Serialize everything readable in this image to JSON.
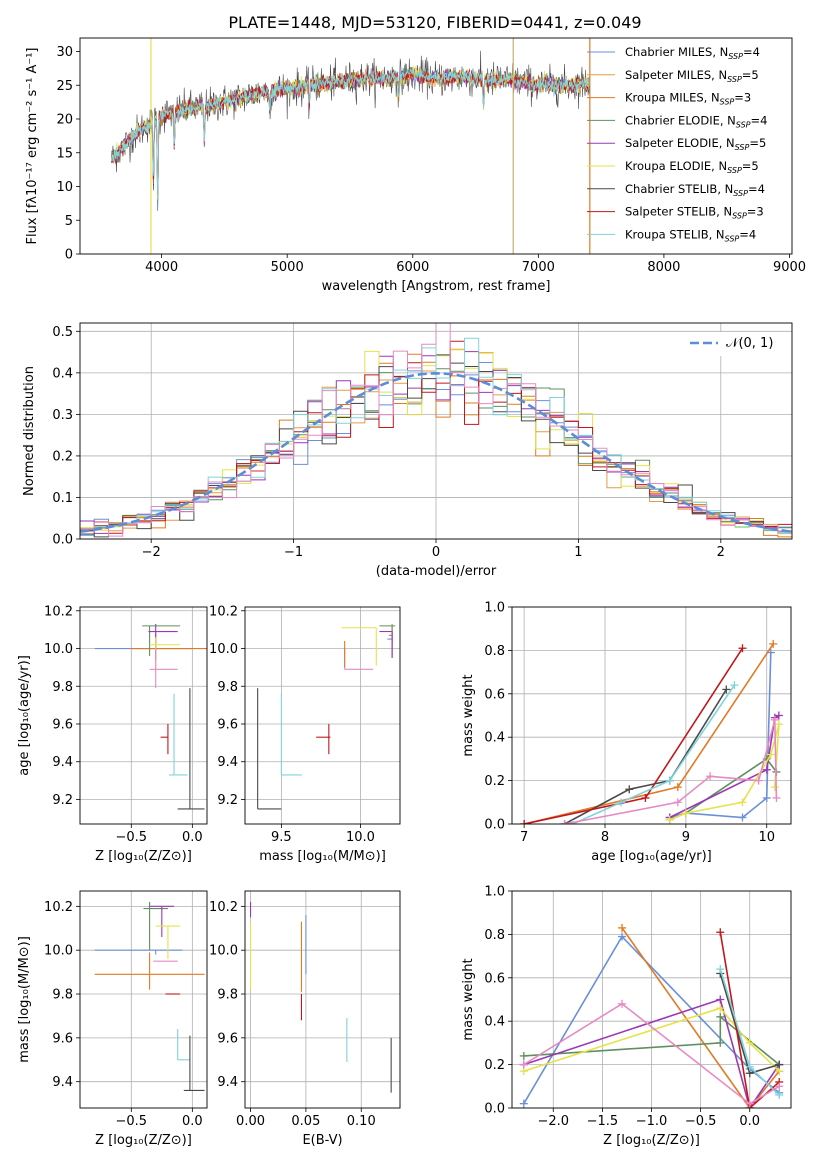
{
  "figure": {
    "title": "PLATE=1448, MJD=53120, FIBERID=0441, z=0.049",
    "colors": [
      "#6b8fd8",
      "#e69a48",
      "#e07a25",
      "#5f8f5f",
      "#9b39b5",
      "#e5e24a",
      "#4a4a4a",
      "#c0181c",
      "#7fd3dc",
      "#e78ac3",
      "#dddd55"
    ]
  },
  "chart_data": [
    {
      "id": "spectrum",
      "type": "line",
      "title": "PLATE=1448, MJD=53120, FIBERID=0441, z=0.049",
      "xlabel": "wavelength [Angstrom, rest frame]",
      "ylabel": "Flux [fλ10⁻¹⁷ erg cm⁻² s⁻¹ A⁻¹]",
      "xlim": [
        3350,
        9020
      ],
      "ylim": [
        0,
        32
      ],
      "xticks": [
        4000,
        5000,
        6000,
        7000,
        8000,
        9000
      ],
      "yticks": [
        0,
        5,
        10,
        15,
        20,
        25,
        30
      ],
      "grid": false,
      "legend_position": "top-right",
      "legend": [
        {
          "label": "Chabrier MILES, N",
          "sub": "SSP",
          "suffix": "=4",
          "color": "#6b8fd8"
        },
        {
          "label": "Salpeter MILES, N",
          "sub": "SSP",
          "suffix": "=5",
          "color": "#e69a48"
        },
        {
          "label": "Kroupa MILES, N",
          "sub": "SSP",
          "suffix": "=3",
          "color": "#e07a25"
        },
        {
          "label": "Chabrier ELODIE, N",
          "sub": "SSP",
          "suffix": "=4",
          "color": "#5f8f5f"
        },
        {
          "label": "Salpeter ELODIE, N",
          "sub": "SSP",
          "suffix": "=5",
          "color": "#9b39b5"
        },
        {
          "label": "Kroupa ELODIE, N",
          "sub": "SSP",
          "suffix": "=5",
          "color": "#e5e24a"
        },
        {
          "label": "Chabrier STELIB, N",
          "sub": "SSP",
          "suffix": "=4",
          "color": "#4a4a4a"
        },
        {
          "label": "Salpeter STELIB, N",
          "sub": "SSP",
          "suffix": "=3",
          "color": "#c0181c"
        },
        {
          "label": "Kroupa STELIB, N",
          "sub": "SSP",
          "suffix": "=4",
          "color": "#7fd3dc"
        }
      ],
      "continuum": [
        [
          3600,
          14
        ],
        [
          3800,
          18
        ],
        [
          4000,
          20.5
        ],
        [
          4200,
          21.5
        ],
        [
          4400,
          22
        ],
        [
          4600,
          23
        ],
        [
          4800,
          24
        ],
        [
          5000,
          24.5
        ],
        [
          5200,
          25
        ],
        [
          5400,
          25.5
        ],
        [
          5600,
          26
        ],
        [
          5800,
          26
        ],
        [
          6000,
          26.5
        ],
        [
          6200,
          26
        ],
        [
          6400,
          26.2
        ],
        [
          6600,
          25.7
        ],
        [
          6800,
          25.8
        ],
        [
          7000,
          25
        ],
        [
          7200,
          25
        ],
        [
          7400,
          25.3
        ]
      ],
      "absorption_lines": [
        [
          3934,
          9
        ],
        [
          3969,
          12
        ],
        [
          4101,
          5
        ],
        [
          4340,
          5
        ],
        [
          4861,
          3
        ],
        [
          5175,
          3
        ],
        [
          5890,
          3
        ],
        [
          6563,
          4
        ],
        [
          7600,
          2
        ]
      ],
      "wavelength_range": [
        3600,
        7410
      ],
      "drop_lines": [
        {
          "x": 3915,
          "color": "#e5e24a"
        },
        {
          "x": 6800,
          "color": "#c9b06a"
        },
        {
          "x": 7410,
          "color": "#e07a25"
        }
      ]
    },
    {
      "id": "residuals",
      "type": "histogram",
      "xlabel": "(data-model)/error",
      "ylabel": "Normed distribution",
      "xlim": [
        -2.5,
        2.5
      ],
      "ylim": [
        0,
        0.52
      ],
      "xticks": [
        -2,
        -1,
        0,
        1,
        2
      ],
      "yticks": [
        0.0,
        0.1,
        0.2,
        0.3,
        0.4,
        0.5
      ],
      "grid": true,
      "legend_position": "top-right",
      "legend": [
        {
          "label": "𝒩(0, 1)",
          "color": "#5b8dd9",
          "style": "dashed"
        }
      ],
      "bins": 50,
      "gaussian": {
        "mean": 0,
        "sigma": 1,
        "label": "𝒩(0, 1)"
      }
    },
    {
      "id": "age-vs-Z",
      "type": "errorbar",
      "xlabel": "Z [log₁₀(Z/Z⊙)]",
      "ylabel": "age  [log₁₀(age/yr)]",
      "xlim": [
        -0.92,
        0.12
      ],
      "ylim": [
        9.07,
        10.22
      ],
      "xticks": [
        -0.5,
        0.0
      ],
      "yticks": [
        9.2,
        9.4,
        9.6,
        9.8,
        10.0,
        10.2
      ],
      "points": [
        {
          "x": -0.3,
          "y": 10.0,
          "xerr": [
            0.5,
            0.3
          ],
          "yerr": [
            0.0,
            0.0
          ],
          "color": "#6b8fd8"
        },
        {
          "x": -0.3,
          "y": 10.0,
          "xerr": [
            0.2,
            0.42
          ],
          "yerr": [
            0.06,
            0.08
          ],
          "color": "#e07a25"
        },
        {
          "x": -0.35,
          "y": 10.12,
          "xerr": [
            0.06,
            0.25
          ],
          "yerr": [
            0.16,
            0.0
          ],
          "color": "#5f8f5f"
        },
        {
          "x": -0.3,
          "y": 10.09,
          "xerr": [
            0.06,
            0.18
          ],
          "yerr": [
            0.15,
            0.04
          ],
          "color": "#9b39b5"
        },
        {
          "x": -0.3,
          "y": 10.02,
          "xerr": [
            0.05,
            0.2
          ],
          "yerr": [
            0.14,
            0.04
          ],
          "color": "#e5e24a"
        },
        {
          "x": -0.3,
          "y": 9.89,
          "xerr": [
            0.05,
            0.18
          ],
          "yerr": [
            0.1,
            0.11
          ],
          "color": "#e78ac3"
        },
        {
          "x": -0.2,
          "y": 9.53,
          "xerr": [
            0.06,
            0.0
          ],
          "yerr": [
            0.09,
            0.07
          ],
          "color": "#c0181c"
        },
        {
          "x": -0.15,
          "y": 9.33,
          "xerr": [
            0.04,
            0.11
          ],
          "yerr": [
            0.0,
            0.43
          ],
          "color": "#7fd3dc"
        },
        {
          "x": -0.02,
          "y": 9.15,
          "xerr": [
            0.1,
            0.12
          ],
          "yerr": [
            0.0,
            0.64
          ],
          "color": "#4a4a4a"
        }
      ]
    },
    {
      "id": "age-vs-mass",
      "type": "errorbar",
      "xlabel": "mass [log₁₀(M/M⊙)]",
      "ylabel": "",
      "xlim": [
        9.27,
        10.25
      ],
      "ylim": [
        9.07,
        10.22
      ],
      "xticks": [
        9.5,
        10.0
      ],
      "yticks": [
        9.2,
        9.4,
        9.6,
        9.8,
        10.0,
        10.2
      ],
      "points": [
        {
          "x": 10.2,
          "y": 10.05,
          "xerr": [
            0.03,
            0.0
          ],
          "yerr": [
            0.1,
            0.05
          ],
          "color": "#6b8fd8"
        },
        {
          "x": 10.2,
          "y": 10.07,
          "xerr": [
            0.02,
            0.0
          ],
          "yerr": [
            0.05,
            0.06
          ],
          "color": "#e07a25"
        },
        {
          "x": 10.2,
          "y": 10.12,
          "xerr": [
            0.08,
            0.02
          ],
          "yerr": [
            0.16,
            0.0
          ],
          "color": "#5f8f5f"
        },
        {
          "x": 10.2,
          "y": 10.09,
          "xerr": [
            0.08,
            0.0
          ],
          "yerr": [
            0.14,
            0.0
          ],
          "color": "#9b39b5"
        },
        {
          "x": 10.1,
          "y": 10.11,
          "xerr": [
            0.22,
            0.0
          ],
          "yerr": [
            0.2,
            0.0
          ],
          "color": "#e5e24a"
        },
        {
          "x": 9.9,
          "y": 9.89,
          "xerr": [
            0.0,
            0.18
          ],
          "yerr": [
            0.0,
            0.11
          ],
          "color": "#e78ac3"
        },
        {
          "x": 9.9,
          "y": 10.0,
          "xerr": [
            0.0,
            0.0
          ],
          "yerr": [
            0.1,
            0.04
          ],
          "color": "#e07a25"
        },
        {
          "x": 9.8,
          "y": 9.53,
          "xerr": [
            0.08,
            0.01
          ],
          "yerr": [
            0.09,
            0.07
          ],
          "color": "#c0181c"
        },
        {
          "x": 9.5,
          "y": 9.33,
          "xerr": [
            0.0,
            0.13
          ],
          "yerr": [
            0.0,
            0.43
          ],
          "color": "#7fd3dc"
        },
        {
          "x": 9.35,
          "y": 9.15,
          "xerr": [
            0.0,
            0.15
          ],
          "yerr": [
            0.0,
            0.64
          ],
          "color": "#4a4a4a"
        }
      ]
    },
    {
      "id": "mass-weight-vs-age",
      "type": "line",
      "xlabel": "age  [log₁₀(age/yr)]",
      "ylabel": "mass weight",
      "xlim": [
        6.85,
        10.3
      ],
      "ylim": [
        0,
        1.0
      ],
      "xticks": [
        7,
        8,
        9,
        10
      ],
      "yticks": [
        0.0,
        0.2,
        0.4,
        0.6,
        0.8,
        1.0
      ],
      "grid": true,
      "series": [
        {
          "color": "#6b8fd8",
          "x": [
            8.8,
            9.0,
            9.7,
            10.0,
            10.05
          ],
          "y": [
            0.03,
            0.05,
            0.03,
            0.12,
            0.79
          ]
        },
        {
          "color": "#e07a25",
          "x": [
            7.0,
            8.9,
            10.08
          ],
          "y": [
            0.0,
            0.17,
            0.83
          ]
        },
        {
          "color": "#5f8f5f",
          "x": [
            8.8,
            9.0,
            10.0,
            10.12
          ],
          "y": [
            0.02,
            0.05,
            0.3,
            0.24
          ]
        },
        {
          "color": "#9b39b5",
          "x": [
            8.8,
            10.0,
            10.1,
            10.15
          ],
          "y": [
            0.03,
            0.25,
            0.49,
            0.5
          ]
        },
        {
          "color": "#e5e24a",
          "x": [
            8.8,
            9.0,
            9.7,
            10.05,
            10.15,
            10.1
          ],
          "y": [
            0.02,
            0.05,
            0.1,
            0.32,
            0.46,
            0.17
          ]
        },
        {
          "color": "#4a4a4a",
          "x": [
            7.5,
            8.3,
            8.8,
            9.5
          ],
          "y": [
            0.0,
            0.16,
            0.2,
            0.62
          ]
        },
        {
          "color": "#c0181c",
          "x": [
            7.0,
            8.5,
            9.7
          ],
          "y": [
            0.0,
            0.12,
            0.81
          ]
        },
        {
          "color": "#7fd3dc",
          "x": [
            7.6,
            8.2,
            8.8,
            9.6
          ],
          "y": [
            0.0,
            0.1,
            0.2,
            0.64
          ]
        },
        {
          "color": "#e78ac3",
          "x": [
            7.5,
            8.9,
            9.3,
            9.9,
            10.1,
            10.12
          ],
          "y": [
            0.0,
            0.1,
            0.22,
            0.2,
            0.48,
            0.12
          ]
        }
      ]
    },
    {
      "id": "mass-vs-Z",
      "type": "errorbar",
      "xlabel": "Z [log₁₀(Z/Z⊙)]",
      "ylabel": "mass [log₁₀(M/M⊙)]",
      "xlim": [
        -0.92,
        0.12
      ],
      "ylim": [
        9.28,
        10.27
      ],
      "xticks": [
        -0.5,
        0.0
      ],
      "yticks": [
        9.4,
        9.6,
        9.8,
        10.0,
        10.2
      ],
      "points": [
        {
          "x": -0.3,
          "y": 10.0,
          "xerr": [
            0.5,
            0.22
          ],
          "yerr": [
            0.02,
            0.0
          ],
          "color": "#6b8fd8"
        },
        {
          "x": -0.35,
          "y": 9.89,
          "xerr": [
            0.45,
            0.45
          ],
          "yerr": [
            0.07,
            0.1
          ],
          "color": "#e07a25"
        },
        {
          "x": -0.35,
          "y": 10.19,
          "xerr": [
            0.05,
            0.15
          ],
          "yerr": [
            0.19,
            0.03
          ],
          "color": "#5f8f5f"
        },
        {
          "x": -0.25,
          "y": 10.2,
          "xerr": [
            0.1,
            0.1
          ],
          "yerr": [
            0.14,
            0.0
          ],
          "color": "#9b39b5"
        },
        {
          "x": -0.2,
          "y": 10.11,
          "xerr": [
            0.1,
            0.1
          ],
          "yerr": [
            0.15,
            0.0
          ],
          "color": "#e5e24a"
        },
        {
          "x": -0.3,
          "y": 9.95,
          "xerr": [
            0.02,
            0.18
          ],
          "yerr": [
            0.0,
            0.0
          ],
          "color": "#e78ac3"
        },
        {
          "x": -0.2,
          "y": 9.8,
          "xerr": [
            0.02,
            0.1
          ],
          "yerr": [
            0.0,
            0.0
          ],
          "color": "#c0181c"
        },
        {
          "x": -0.12,
          "y": 9.5,
          "xerr": [
            0.0,
            0.1
          ],
          "yerr": [
            0.0,
            0.14
          ],
          "color": "#7fd3dc"
        },
        {
          "x": -0.02,
          "y": 9.36,
          "xerr": [
            0.05,
            0.12
          ],
          "yerr": [
            0.0,
            0.25
          ],
          "color": "#4a4a4a"
        }
      ]
    },
    {
      "id": "mass-vs-ebv",
      "type": "errorbar",
      "xlabel": "E(B-V)",
      "ylabel": "",
      "xlim": [
        -0.005,
        0.135
      ],
      "ylim": [
        9.28,
        10.27
      ],
      "xticks": [
        0.0,
        0.05,
        0.1
      ],
      "yticks": [
        9.4,
        9.6,
        9.8,
        10.0,
        10.2
      ],
      "points": [
        {
          "x": 0.0,
          "y": 10.2,
          "yerr": [
            0.05,
            0.02
          ],
          "color": "#9b39b5"
        },
        {
          "x": 0.0,
          "y": 10.0,
          "yerr": [
            0.18,
            0.13
          ],
          "color": "#e5e24a"
        },
        {
          "x": 0.05,
          "y": 10.02,
          "yerr": [
            0.13,
            0.14
          ],
          "color": "#6b8fd8"
        },
        {
          "x": 0.046,
          "y": 9.88,
          "yerr": [
            0.07,
            0.25
          ],
          "color": "#e07a25"
        },
        {
          "x": 0.046,
          "y": 9.8,
          "yerr": [
            0.12,
            0.0
          ],
          "color": "#c0181c"
        },
        {
          "x": 0.087,
          "y": 9.6,
          "yerr": [
            0.11,
            0.09
          ],
          "color": "#7fd3dc"
        },
        {
          "x": 0.127,
          "y": 9.45,
          "yerr": [
            0.1,
            0.15
          ],
          "color": "#4a4a4a"
        }
      ]
    },
    {
      "id": "mass-weight-vs-Z",
      "type": "line",
      "xlabel": "Z [log₁₀(Z/Z⊙)]",
      "ylabel": "mass weight",
      "xlim": [
        -2.42,
        0.42
      ],
      "ylim": [
        0,
        1.0
      ],
      "xticks": [
        -2.0,
        -1.5,
        -1.0,
        -0.5,
        0.0
      ],
      "yticks": [
        0.0,
        0.2,
        0.4,
        0.6,
        0.8,
        1.0
      ],
      "grid": true,
      "series": [
        {
          "color": "#6b8fd8",
          "x": [
            -2.3,
            -1.3,
            0.0,
            0.3
          ],
          "y": [
            0.02,
            0.79,
            0.18,
            0.07
          ]
        },
        {
          "color": "#e07a25",
          "x": [
            -1.3,
            0.0,
            0.3
          ],
          "y": [
            0.83,
            0.0,
            0.17
          ]
        },
        {
          "color": "#5f8f5f",
          "x": [
            -2.3,
            -0.3,
            -0.3,
            0.3
          ],
          "y": [
            0.24,
            0.3,
            0.42,
            0.2
          ]
        },
        {
          "color": "#9b39b5",
          "x": [
            -2.3,
            -0.3,
            0.0,
            0.3
          ],
          "y": [
            0.2,
            0.5,
            0.0,
            0.2
          ]
        },
        {
          "color": "#e5e24a",
          "x": [
            -2.3,
            -0.3,
            0.0,
            0.3
          ],
          "y": [
            0.17,
            0.46,
            0.3,
            0.17
          ]
        },
        {
          "color": "#4a4a4a",
          "x": [
            -0.3,
            0.0,
            0.3
          ],
          "y": [
            0.62,
            0.16,
            0.2
          ]
        },
        {
          "color": "#c0181c",
          "x": [
            -0.3,
            0.0,
            0.3
          ],
          "y": [
            0.81,
            0.0,
            0.12
          ]
        },
        {
          "color": "#7fd3dc",
          "x": [
            -0.3,
            0.0,
            0.3
          ],
          "y": [
            0.64,
            0.19,
            0.06
          ]
        },
        {
          "color": "#e78ac3",
          "x": [
            -2.3,
            -1.3,
            0.0,
            0.3
          ],
          "y": [
            0.2,
            0.48,
            0.02,
            0.1
          ]
        }
      ]
    }
  ]
}
